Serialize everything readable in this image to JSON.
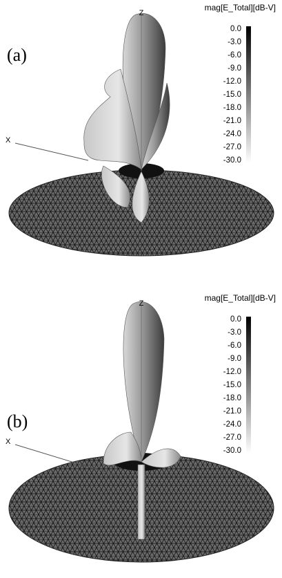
{
  "panels": [
    {
      "label": "(a)",
      "axis_z": "Z",
      "axis_x": "X",
      "colorbar": {
        "title": "mag[E_Total][dB-V]",
        "ticks": [
          "0.0",
          "-3.0",
          "-6.0",
          "-9.0",
          "-12.0",
          "-15.0",
          "-18.0",
          "-21.0",
          "-24.0",
          "-27.0",
          "-30.0"
        ]
      }
    },
    {
      "label": "(b)",
      "axis_z": "Z",
      "axis_x": "X",
      "colorbar": {
        "title": "mag[E_Total][dB-V]",
        "ticks": [
          "0.0",
          "-3.0",
          "-6.0",
          "-9.0",
          "-12.0",
          "-15.0",
          "-18.0",
          "-21.0",
          "-24.0",
          "-27.0",
          "-30.0"
        ]
      }
    }
  ]
}
